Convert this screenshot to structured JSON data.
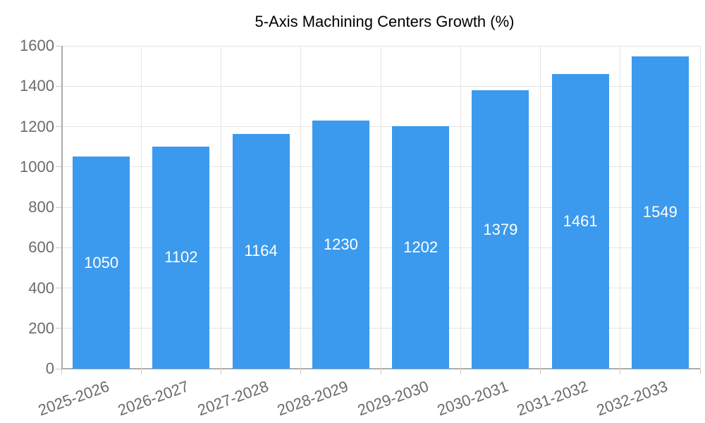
{
  "legend": {
    "label": "5-Axis Machining Centers Growth (%)"
  },
  "chart_data": {
    "type": "bar",
    "title": "5-Axis Machining Centers Growth (%)",
    "categories": [
      "2025-2026",
      "2026-2027",
      "2027-2028",
      "2028-2029",
      "2029-2030",
      "2030-2031",
      "2031-2032",
      "2032-2033"
    ],
    "values": [
      1050,
      1102,
      1164,
      1230,
      1202,
      1379,
      1461,
      1549
    ],
    "series_name": "5-Axis Machining Centers Growth (%)",
    "xlabel": "",
    "ylabel": "",
    "ylim": [
      0,
      1600
    ],
    "ytick_step": 200,
    "yticks": [
      0,
      200,
      400,
      600,
      800,
      1000,
      1200,
      1400,
      1600
    ],
    "grid": true,
    "legend_position": "top",
    "value_label_position": "inside-center"
  },
  "colors": {
    "bar": "#3B9AED",
    "grid": "#E5E5E5",
    "axis": "#ACACAC",
    "tick_mark": "#C9C9C9",
    "tick_text": "#6B6B6B",
    "value_label": "#FFFFFF",
    "background": "#FFFFFF"
  }
}
